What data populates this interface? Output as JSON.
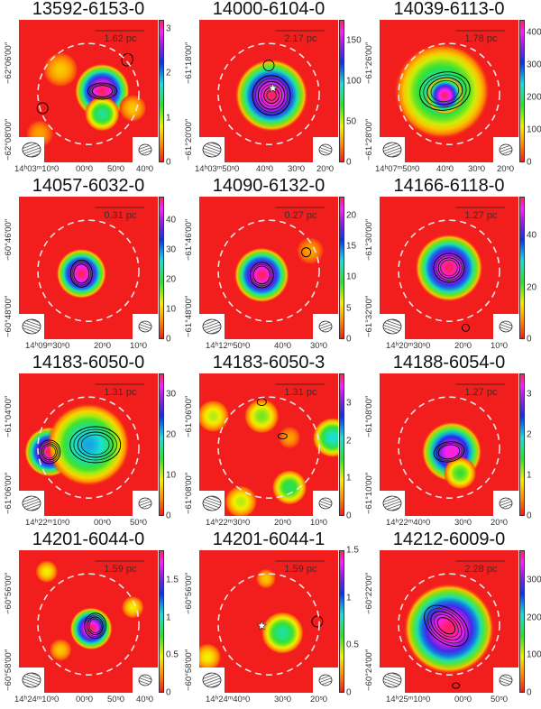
{
  "chart_data": [
    {
      "type": "heatmap",
      "title": "13592-6153-0",
      "scale_bar": "1.62 pc",
      "cbar": {
        "min": 0,
        "max": 3.2,
        "ticks": [
          "0",
          "1",
          "2",
          "3"
        ]
      },
      "dec_labels": [
        "−62°06′00″",
        "−62°08′00″"
      ],
      "ra_labels": [
        "14ʰ03ᵐ10ˢ0",
        "00ˢ0",
        "50ˢ0",
        "40ˢ0"
      ],
      "star": false
    },
    {
      "type": "heatmap",
      "title": "14000-6104-0",
      "scale_bar": "2.17 pc",
      "cbar": {
        "min": 0,
        "max": 175,
        "ticks": [
          "0",
          "50",
          "100",
          "150"
        ]
      },
      "dec_labels": [
        "−61°18′00″",
        "−61°20′00″"
      ],
      "ra_labels": [
        "14ʰ03ᵐ50ˢ0",
        "40ˢ0",
        "30ˢ0",
        "20ˢ0"
      ],
      "star": true
    },
    {
      "type": "heatmap",
      "title": "14039-6113-0",
      "scale_bar": "1.78 pc",
      "cbar": {
        "min": 0,
        "max": 440,
        "ticks": [
          "0",
          "100",
          "200",
          "300",
          "400"
        ]
      },
      "dec_labels": [
        "−61°26′00″",
        "−61°28′00″"
      ],
      "ra_labels": [
        "14ʰ07ᵐ50ˢ0",
        "40ˢ0",
        "30ˢ0",
        "20ˢ0"
      ],
      "star": false
    },
    {
      "type": "heatmap",
      "title": "14057-6032-0",
      "scale_bar": "0.31 pc",
      "cbar": {
        "min": 0,
        "max": 48,
        "ticks": [
          "0",
          "10",
          "20",
          "30",
          "40"
        ]
      },
      "dec_labels": [
        "−60°46′00″",
        "−60°48′00″"
      ],
      "ra_labels": [
        "14ʰ09ᵐ30ˢ0",
        "20ˢ0",
        "10ˢ0"
      ],
      "star": false
    },
    {
      "type": "heatmap",
      "title": "14090-6132-0",
      "scale_bar": "0.27 pc",
      "cbar": {
        "min": 0,
        "max": 23,
        "ticks": [
          "0",
          "5",
          "10",
          "15",
          "20"
        ]
      },
      "dec_labels": [
        "−61°46′00″",
        "−61°48′00″"
      ],
      "ra_labels": [
        "14ʰ12ᵐ50ˢ0",
        "40ˢ0",
        "30ˢ0"
      ],
      "star": false
    },
    {
      "type": "heatmap",
      "title": "14166-6118-0",
      "scale_bar": "1.27 pc",
      "cbar": {
        "min": 0,
        "max": 55,
        "ticks": [
          "0",
          "20",
          "40"
        ]
      },
      "dec_labels": [
        "−61°30′00″",
        "−61°32′00″"
      ],
      "ra_labels": [
        "14ʰ20ᵐ30ˢ0",
        "20ˢ0",
        "10ˢ0"
      ],
      "star": false
    },
    {
      "type": "heatmap",
      "title": "14183-6050-0",
      "scale_bar": "1.31 pc",
      "cbar": {
        "min": 0,
        "max": 35,
        "ticks": [
          "0",
          "10",
          "20",
          "30"
        ]
      },
      "dec_labels": [
        "−61°04′00″",
        "−61°06′00″"
      ],
      "ra_labels": [
        "14ʰ22ᵐ10ˢ0",
        "00ˢ0",
        "50ˢ0"
      ],
      "star": false
    },
    {
      "type": "heatmap",
      "title": "14183-6050-3",
      "scale_bar": "1.31 pc",
      "cbar": {
        "min": 0,
        "max": 3.8,
        "ticks": [
          "0",
          "1",
          "2",
          "3"
        ]
      },
      "dec_labels": [
        "−61°06′00″",
        "−61°08′00″"
      ],
      "ra_labels": [
        "14ʰ22ᵐ30ˢ0",
        "20ˢ0",
        "10ˢ0"
      ],
      "star": false
    },
    {
      "type": "heatmap",
      "title": "14188-6054-0",
      "scale_bar": "1.27 pc",
      "cbar": {
        "min": 0,
        "max": 3.5,
        "ticks": [
          "0",
          "1",
          "2",
          "3"
        ]
      },
      "dec_labels": [
        "−61°08′00″",
        "−61°10′00″"
      ],
      "ra_labels": [
        "14ʰ22ᵐ40ˢ0",
        "30ˢ0",
        "20ˢ0"
      ],
      "star": false
    },
    {
      "type": "heatmap",
      "title": "14201-6044-0",
      "scale_bar": "1.59 pc",
      "cbar": {
        "min": 0,
        "max": 1.9,
        "ticks": [
          "0",
          "0.5",
          "1",
          "1.5"
        ]
      },
      "dec_labels": [
        "−60°56′00″",
        "−60°58′00″"
      ],
      "ra_labels": [
        "14ʰ24ᵐ10ˢ0",
        "00ˢ0",
        "50ˢ0",
        "40ˢ0"
      ],
      "star": false
    },
    {
      "type": "heatmap",
      "title": "14201-6044-1",
      "scale_bar": "1.59 pc",
      "cbar": {
        "min": 0,
        "max": 1.5,
        "ticks": [
          "0",
          "0.5",
          "1",
          "1.5"
        ]
      },
      "dec_labels": [
        "−60°56′00″",
        "−60°58′00″"
      ],
      "ra_labels": [
        "14ʰ24ᵐ40ˢ0",
        "30ˢ0",
        "20ˢ0"
      ],
      "star": true
    },
    {
      "type": "heatmap",
      "title": "14212-6009-0",
      "scale_bar": "2.28 pc",
      "cbar": {
        "min": 0,
        "max": 380,
        "ticks": [
          "0",
          "100",
          "200",
          "300"
        ]
      },
      "dec_labels": [
        "−60°22′00″",
        "−60°24′00″"
      ],
      "ra_labels": [
        "14ʰ25ᵐ10ˢ0",
        "00ˢ0",
        "50ˢ0"
      ],
      "star": false
    }
  ]
}
